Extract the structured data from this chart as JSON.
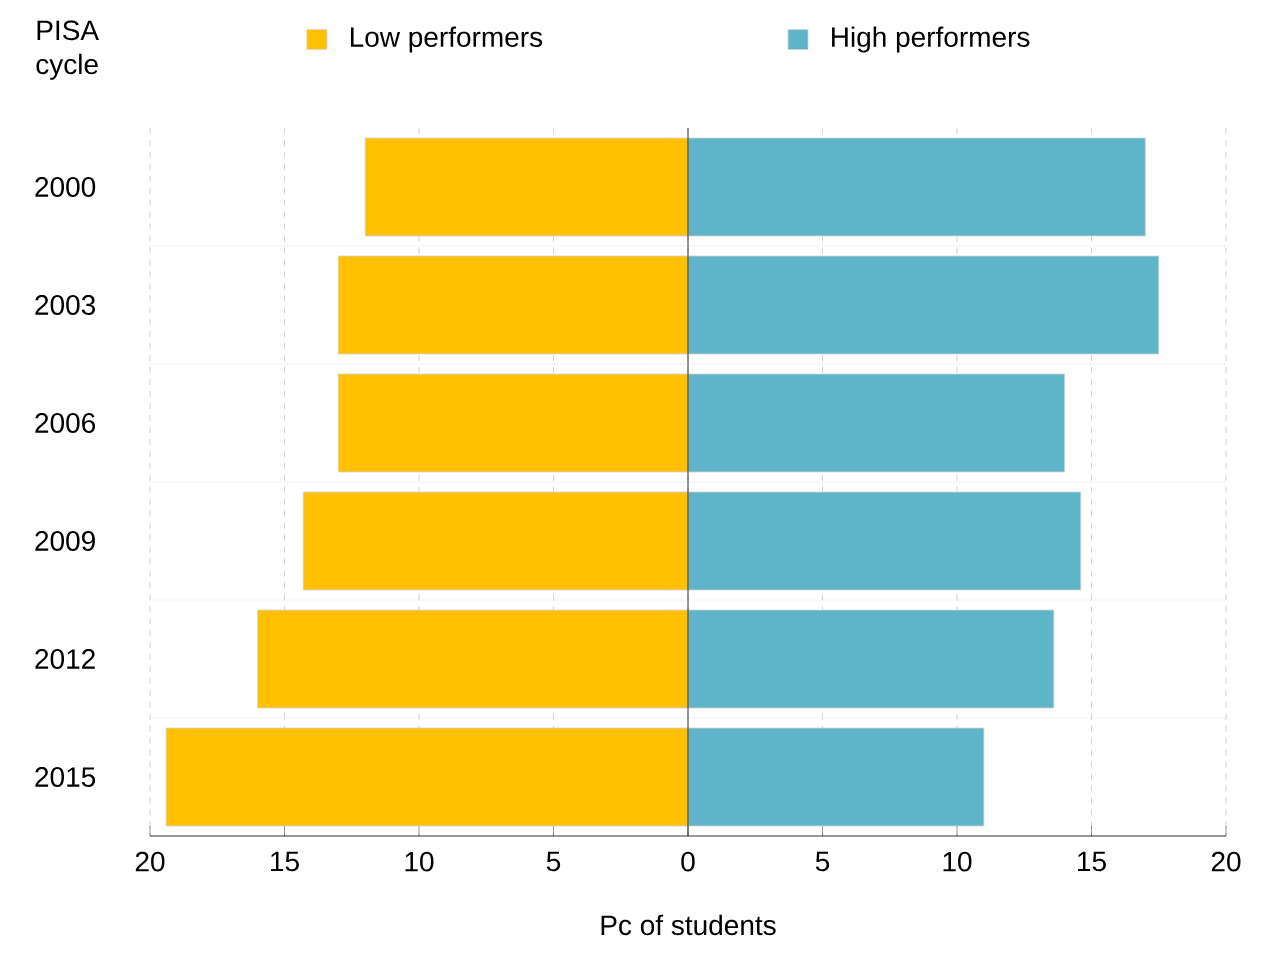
{
  "chart_data": {
    "type": "bar",
    "orientation": "horizontal",
    "ylabel": "PISA cycle",
    "xlabel": "Pc of students",
    "categories": [
      "2000",
      "2003",
      "2006",
      "2009",
      "2012",
      "2015"
    ],
    "series": [
      {
        "name": "Low performers",
        "color": "#ffc000",
        "values": [
          -12,
          -13,
          -13,
          -14.3,
          -16,
          -19.4
        ]
      },
      {
        "name": "High performers",
        "color": "#5eb5c9",
        "values": [
          17,
          17.5,
          14,
          14.6,
          13.6,
          11
        ]
      }
    ],
    "xlim": [
      -20,
      20
    ],
    "xticks": [
      {
        "value": -20,
        "label": "20"
      },
      {
        "value": -15,
        "label": "15"
      },
      {
        "value": -10,
        "label": "10"
      },
      {
        "value": -5,
        "label": "5"
      },
      0,
      5,
      10,
      15,
      20
    ],
    "stacked": true,
    "grid": true,
    "legend": "top"
  }
}
